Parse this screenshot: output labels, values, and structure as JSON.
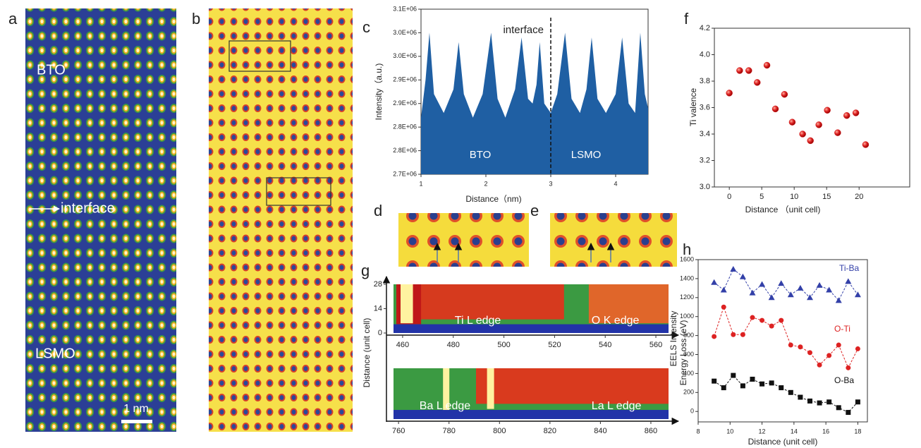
{
  "figure": {
    "panel_labels": [
      "a",
      "b",
      "c",
      "d",
      "e",
      "f",
      "g",
      "h"
    ],
    "image_a": {
      "top_label": "BTO",
      "arrow_label": "interface",
      "bottom_label": "LSMO",
      "scale_bar": "1 nm"
    }
  },
  "chart_data": [
    {
      "type": "area",
      "ylabel": "Intensity（a.u.)",
      "xlabel": "Distance（nm)",
      "color": "#1f5fa3",
      "x": [
        1.0,
        1.07,
        1.13,
        1.2,
        1.35,
        1.5,
        1.58,
        1.66,
        1.8,
        1.95,
        2.08,
        2.18,
        2.3,
        2.45,
        2.55,
        2.65,
        2.72,
        2.78,
        2.83,
        2.9,
        3.0,
        3.1,
        3.22,
        3.32,
        3.45,
        3.55,
        3.63,
        3.72,
        3.85,
        4.0,
        4.1,
        4.2,
        4.3,
        4.38,
        4.45,
        4.5
      ],
      "values": [
        2820000,
        2900000,
        3000000,
        2870000,
        2830000,
        2880000,
        2980000,
        2870000,
        2820000,
        2870000,
        3000000,
        2860000,
        2820000,
        2880000,
        2990000,
        2860000,
        2850000,
        2890000,
        2980000,
        2850000,
        2830000,
        2870000,
        3000000,
        2860000,
        2830000,
        2880000,
        2990000,
        2860000,
        2830000,
        2870000,
        2990000,
        2850000,
        2830000,
        3000000,
        2870000,
        2840000
      ],
      "xlim": [
        1,
        4.5
      ],
      "xticks": [
        1,
        2,
        3,
        4
      ],
      "ylim": [
        2700000,
        3050000
      ],
      "yticks": [
        {
          "value": 2700000,
          "label": "2.7E+06"
        },
        {
          "value": 2750000,
          "label": "2.8E+06"
        },
        {
          "value": 2800000,
          "label": "2.8E+06"
        },
        {
          "value": 2850000,
          "label": "2.9E+06"
        },
        {
          "value": 2900000,
          "label": "2.9E+06"
        },
        {
          "value": 2950000,
          "label": "3.0E+06"
        },
        {
          "value": 3000000,
          "label": "3.0E+06"
        },
        {
          "value": 3050000,
          "label": "3.1E+06"
        }
      ],
      "vline": {
        "x": 3,
        "label": "interface"
      },
      "region_labels": [
        "BTO",
        "LSMO"
      ]
    },
    {
      "type": "scatter",
      "ylabel": "Ti valence",
      "xlabel": "Distance （unit cell)",
      "color": "#d42020",
      "x": [
        0,
        1.6,
        3,
        4.3,
        5.8,
        7.1,
        8.5,
        9.7,
        11.3,
        12.5,
        13.8,
        15.1,
        16.7,
        18.1,
        19.5,
        21
      ],
      "values": [
        3.71,
        3.88,
        3.88,
        3.79,
        3.92,
        3.59,
        3.7,
        3.49,
        3.4,
        3.35,
        3.47,
        3.58,
        3.41,
        3.54,
        3.56,
        3.32
      ],
      "xlim": [
        -2.3,
        27.8
      ],
      "xticks": [
        0,
        5,
        10,
        15,
        20
      ],
      "ylim": [
        3,
        4.2
      ],
      "yticks": [
        {
          "value": 3,
          "label": "3.0"
        },
        3.2,
        3.4,
        3.6,
        3.8,
        {
          "value": 4,
          "label": "4.0"
        },
        4.2
      ]
    },
    {
      "type": "line",
      "ylabel": "EELS Intensity",
      "xlabel": "Distance (unit cell)",
      "x": [
        9,
        9.6,
        10.2,
        10.8,
        11.4,
        12,
        12.6,
        13.2,
        13.8,
        14.4,
        15,
        15.6,
        16.2,
        16.8,
        17.4,
        18
      ],
      "series": [
        {
          "name": "Ti-Ba",
          "color": "#3340a8",
          "marker": "triangle",
          "values": [
            1360,
            1280,
            1500,
            1420,
            1250,
            1340,
            1200,
            1350,
            1230,
            1300,
            1200,
            1330,
            1280,
            1170,
            1370,
            1230
          ]
        },
        {
          "name": "O-Ti",
          "color": "#dd2222",
          "marker": "circle",
          "values": [
            790,
            1100,
            810,
            810,
            990,
            960,
            900,
            960,
            700,
            680,
            620,
            490,
            590,
            700,
            460,
            660
          ]
        },
        {
          "name": "O-Ba",
          "color": "#111111",
          "marker": "square",
          "values": [
            320,
            250,
            380,
            270,
            340,
            290,
            300,
            250,
            200,
            150,
            110,
            90,
            100,
            40,
            -10,
            100
          ]
        }
      ],
      "xlim": [
        8,
        18.6
      ],
      "xticks": [
        8,
        10,
        12,
        14,
        16,
        18
      ],
      "ylim": [
        -110,
        1600
      ],
      "yticks": [
        0,
        200,
        400,
        600,
        800,
        1000,
        1200,
        1400,
        1600
      ]
    },
    {
      "type": "heatmap",
      "ylabel": "Distance (unit cell)",
      "side_label": "Energy Loss (eV)",
      "xlim": [
        456.4,
        565
      ],
      "xticks": [
        460,
        480,
        500,
        520,
        540,
        560
      ],
      "ylim": [
        0,
        28
      ],
      "yticks": [
        0,
        14,
        28
      ],
      "annotations": [
        "Ti L edge",
        "O K edge"
      ]
    },
    {
      "type": "heatmap",
      "xlim": [
        758,
        867
      ],
      "xticks": [
        760,
        780,
        800,
        820,
        840,
        860
      ],
      "annotations": [
        "Ba L edge",
        "La L edge"
      ]
    }
  ]
}
